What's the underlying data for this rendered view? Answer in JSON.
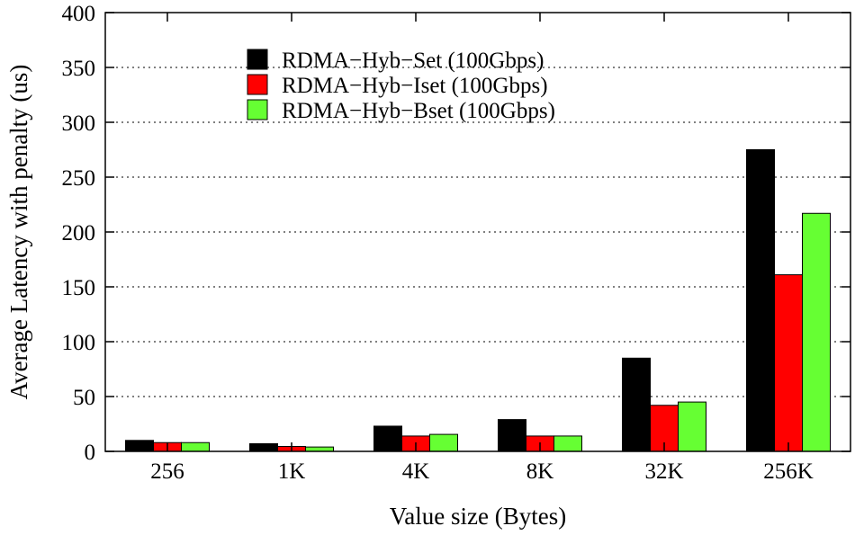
{
  "chart_data": {
    "type": "bar",
    "categories": [
      "256",
      "1K",
      "4K",
      "8K",
      "32K",
      "256K"
    ],
    "series": [
      {
        "name": "RDMA−Hyb−Set (100Gbps)",
        "color": "#000000",
        "values": [
          10,
          7,
          23,
          29,
          85,
          275
        ]
      },
      {
        "name": "RDMA−Hyb−Iset (100Gbps)",
        "color": "#ff0000",
        "values": [
          8,
          4.5,
          14,
          14,
          42,
          161
        ]
      },
      {
        "name": "RDMA−Hyb−Bset (100Gbps)",
        "color": "#66ff33",
        "values": [
          8,
          4,
          15.5,
          14,
          45,
          217
        ]
      }
    ],
    "xlabel": "Value size (Bytes)",
    "ylabel": "Average Latency with penalty (us)",
    "ylim": [
      0,
      400
    ],
    "yticks": [
      0,
      50,
      100,
      150,
      200,
      250,
      300,
      350,
      400
    ],
    "grid": "horizontal-dotted",
    "legend": "top-center"
  }
}
